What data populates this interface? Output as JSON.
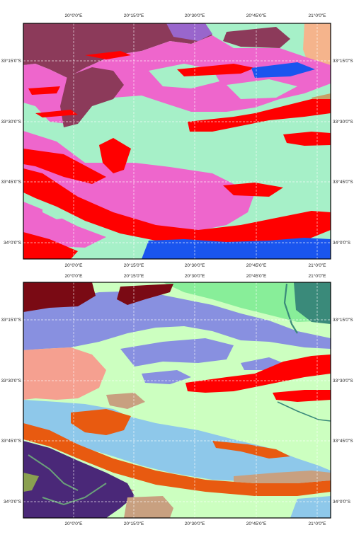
{
  "maps": [
    {
      "id": "top",
      "lon_labels": [
        "20°0'0\"E",
        "20°15'0\"E",
        "20°30'0\"E",
        "20°45'0\"E",
        "21°0'0\"E"
      ],
      "lat_labels": [
        "33°15'0\"S",
        "33°30'0\"S",
        "33°45'0\"S",
        "34°0'0\"S"
      ],
      "colors": {
        "background": "#a6f0c8",
        "pink": "#ee66cc",
        "red": "#ff0000",
        "maroon": "#8c3a5a",
        "blue": "#1a55ee",
        "peach": "#f5b48c",
        "purple": "#9966cc",
        "tan": "#c8a064"
      }
    },
    {
      "id": "bottom",
      "lon_labels": [
        "20°0'0\"E",
        "20°15'0\"E",
        "20°30'0\"E",
        "20°45'0\"E",
        "21°0'0\"E"
      ],
      "lat_labels": [
        "33°15'0\"S",
        "33°30'0\"S",
        "33°45'0\"S",
        "34°0'0\"S"
      ],
      "colors": {
        "background": "#ccffc0",
        "light_blue": "#8ec8ea",
        "periwinkle": "#8890e0",
        "salmon": "#f5a090",
        "red": "#ff0000",
        "orange": "#e85a10",
        "maroon": "#7a0a14",
        "green": "#88ee99",
        "teal": "#3a8a7a",
        "dark_purple": "#4a2878",
        "tan": "#c8a080",
        "olive": "#8aa050"
      }
    }
  ]
}
